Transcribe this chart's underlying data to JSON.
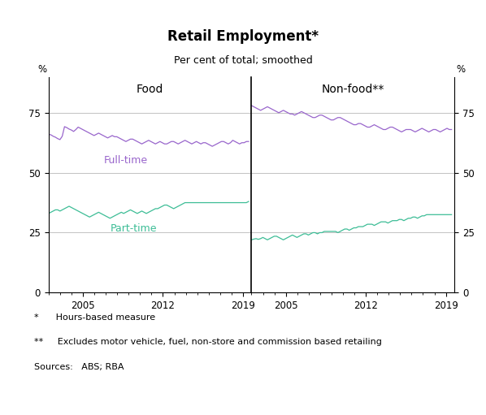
{
  "title": "Retail Employment*",
  "subtitle": "Per cent of total; smoothed",
  "panel_left_title": "Food",
  "panel_right_title": "Non-food**",
  "ylabel_left": "%",
  "ylabel_right": "%",
  "ylim": [
    0,
    90
  ],
  "yticks": [
    0,
    25,
    50,
    75
  ],
  "xlim_left": [
    2002.0,
    2019.75
  ],
  "xlim_right": [
    2002.0,
    2019.75
  ],
  "xticks": [
    2005,
    2012,
    2019
  ],
  "fulltime_color": "#9966CC",
  "parttime_color": "#3DBD96",
  "grid_color": "#AAAAAA",
  "background_color": "#FFFFFF",
  "footnote1": "*      Hours-based measure",
  "footnote2": "**     Excludes motor vehicle, fuel, non-store and commission based retailing",
  "footnote3": "Sources:   ABS; RBA",
  "food_fulltime": [
    66.0,
    65.8,
    65.2,
    64.8,
    64.2,
    63.8,
    65.2,
    69.2,
    68.8,
    68.2,
    67.8,
    67.2,
    68.0,
    69.0,
    68.5,
    68.0,
    67.5,
    67.0,
    66.5,
    66.0,
    65.5,
    66.0,
    66.5,
    66.0,
    65.5,
    65.0,
    64.5,
    65.0,
    65.5,
    65.0,
    65.0,
    64.5,
    64.0,
    63.5,
    63.0,
    63.5,
    64.0,
    64.0,
    63.5,
    63.0,
    62.5,
    62.0,
    62.5,
    63.0,
    63.5,
    63.0,
    62.5,
    62.0,
    62.5,
    63.0,
    62.5,
    62.0,
    62.0,
    62.5,
    63.0,
    63.0,
    62.5,
    62.0,
    62.5,
    63.0,
    63.5,
    63.0,
    62.5,
    62.0,
    62.5,
    63.0,
    62.5,
    62.0,
    62.5,
    62.5,
    62.0,
    61.5,
    61.0,
    61.5,
    62.0,
    62.5,
    63.0,
    63.0,
    62.5,
    62.0,
    62.5,
    63.5,
    63.0,
    62.5,
    62.0,
    62.5,
    62.5,
    63.0,
    63.0
  ],
  "food_parttime": [
    33.0,
    33.5,
    34.0,
    34.5,
    34.5,
    34.0,
    34.5,
    35.0,
    35.5,
    36.0,
    35.5,
    35.0,
    34.5,
    34.0,
    33.5,
    33.0,
    32.5,
    32.0,
    31.5,
    32.0,
    32.5,
    33.0,
    33.5,
    33.0,
    32.5,
    32.0,
    31.5,
    31.0,
    31.5,
    32.0,
    32.5,
    33.0,
    33.5,
    33.0,
    33.5,
    34.0,
    34.5,
    34.0,
    33.5,
    33.0,
    33.5,
    34.0,
    33.5,
    33.0,
    33.5,
    34.0,
    34.5,
    35.0,
    35.0,
    35.5,
    36.0,
    36.5,
    36.5,
    36.0,
    35.5,
    35.0,
    35.5,
    36.0,
    36.5,
    37.0,
    37.5,
    37.5,
    37.5,
    37.5,
    37.5,
    37.5,
    37.5,
    37.5,
    37.5,
    37.5,
    37.5,
    37.5,
    37.5,
    37.5,
    37.5,
    37.5,
    37.5,
    37.5,
    37.5,
    37.5,
    37.5,
    37.5,
    37.5,
    37.5,
    37.5,
    37.5,
    37.5,
    37.5,
    38.0
  ],
  "nonfood_fulltime": [
    78.0,
    77.5,
    77.0,
    76.5,
    76.0,
    76.5,
    77.0,
    77.5,
    77.0,
    76.5,
    76.0,
    75.5,
    75.0,
    75.5,
    76.0,
    75.5,
    75.0,
    74.5,
    74.5,
    74.0,
    74.5,
    75.0,
    75.5,
    75.0,
    74.5,
    74.0,
    73.5,
    73.0,
    73.0,
    73.5,
    74.0,
    74.0,
    73.5,
    73.0,
    72.5,
    72.0,
    72.0,
    72.5,
    73.0,
    73.0,
    72.5,
    72.0,
    71.5,
    71.0,
    70.5,
    70.0,
    70.0,
    70.5,
    70.5,
    70.0,
    69.5,
    69.0,
    69.0,
    69.5,
    70.0,
    69.5,
    69.0,
    68.5,
    68.0,
    68.0,
    68.5,
    69.0,
    69.0,
    68.5,
    68.0,
    67.5,
    67.0,
    67.5,
    68.0,
    68.0,
    68.0,
    67.5,
    67.0,
    67.5,
    68.0,
    68.5,
    68.0,
    67.5,
    67.0,
    67.5,
    68.0,
    68.0,
    67.5,
    67.0,
    67.5,
    68.0,
    68.5,
    68.0,
    68.0
  ],
  "nonfood_parttime": [
    22.0,
    22.3,
    22.5,
    22.2,
    22.5,
    23.0,
    22.5,
    22.0,
    22.5,
    23.0,
    23.5,
    23.5,
    23.0,
    22.5,
    22.0,
    22.5,
    23.0,
    23.5,
    24.0,
    23.5,
    23.0,
    23.5,
    24.0,
    24.5,
    24.5,
    24.0,
    24.5,
    25.0,
    25.0,
    24.5,
    25.0,
    25.0,
    25.5,
    25.5,
    25.5,
    25.5,
    25.5,
    25.5,
    25.0,
    25.5,
    26.0,
    26.5,
    26.5,
    26.0,
    26.5,
    27.0,
    27.0,
    27.5,
    27.5,
    27.5,
    28.0,
    28.5,
    28.5,
    28.5,
    28.0,
    28.5,
    29.0,
    29.5,
    29.5,
    29.5,
    29.0,
    29.5,
    30.0,
    30.0,
    30.0,
    30.5,
    30.5,
    30.0,
    30.5,
    31.0,
    31.0,
    31.5,
    31.5,
    31.0,
    31.5,
    32.0,
    32.0,
    32.5,
    32.5,
    32.5,
    32.5,
    32.5,
    32.5,
    32.5,
    32.5,
    32.5,
    32.5,
    32.5,
    32.5
  ]
}
